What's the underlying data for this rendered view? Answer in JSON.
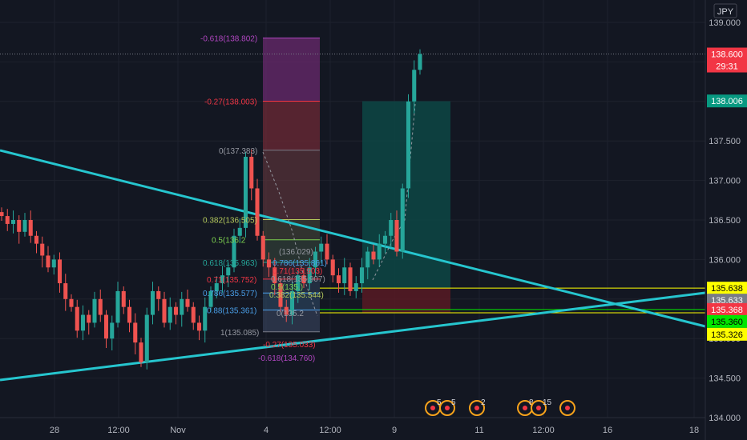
{
  "chart_data": {
    "type": "candlestick",
    "symbol_unit": "JPY",
    "y_axis": {
      "ticks": [
        "139.000",
        "138.500",
        "138.000",
        "137.500",
        "137.000",
        "136.500",
        "136.000",
        "135.500",
        "135.000",
        "134.500",
        "134.000"
      ],
      "range": [
        134.0,
        139.2
      ]
    },
    "x_axis": {
      "ticks": [
        {
          "label": "28"
        },
        {
          "label": "12:00"
        },
        {
          "label": "Nov"
        },
        {
          "label": "4"
        },
        {
          "label": "12:00"
        },
        {
          "label": "9"
        },
        {
          "label": "11"
        },
        {
          "label": "12:00"
        },
        {
          "label": "16"
        },
        {
          "label": "18"
        }
      ]
    },
    "price_tags": [
      {
        "label": "138.600",
        "value": 138.6,
        "color": "#f23645",
        "text_color": "#ffffff"
      },
      {
        "label": "29:31",
        "value": 138.43,
        "color": "#f23645",
        "text_color": "#ffffff"
      },
      {
        "label": "138.006",
        "value": 138.006,
        "color": "#089981",
        "text_color": "#ffffff"
      },
      {
        "label": "135.638",
        "value": 135.638,
        "color": "#ffff00",
        "text_color": "#000000"
      },
      {
        "label": "135.633",
        "value": 135.633,
        "color": "#787b86",
        "text_color": "#ffffff"
      },
      {
        "label": "135.368",
        "value": 135.368,
        "color": "#f23645",
        "text_color": "#ffffff"
      },
      {
        "label": "135.360",
        "value": 135.36,
        "color": "#00e600",
        "text_color": "#000000"
      },
      {
        "label": "135.326",
        "value": 135.326,
        "color": "#ffff00",
        "text_color": "#000000"
      }
    ],
    "fib_labels": [
      {
        "text": "-0.618(138.802)",
        "color": "#b046c0"
      },
      {
        "text": "-0.27(138.003)",
        "color": "#f23645"
      },
      {
        "text": "0(137.383)",
        "color": "#9598a1"
      },
      {
        "text": "0.382(136.505)",
        "color": "#b5c95c"
      },
      {
        "text": "0.5(136.2",
        "color": "#7ccf4f"
      },
      {
        "text": "0.618(135.963)",
        "color": "#26a69a"
      },
      {
        "text": "0.71(135.752)",
        "color": "#f23645"
      },
      {
        "text": "0.786(135.577)",
        "color": "#4a9fe8"
      },
      {
        "text": "0.88(135.361)",
        "color": "#4a9fe8"
      },
      {
        "text": "1(135.085)",
        "color": "#9598a1"
      },
      {
        "text": "-0.27(135.033)",
        "color": "#f23645"
      },
      {
        "text": "-0.618(134.760)",
        "color": "#b046c0"
      },
      {
        "text": "(136.029)",
        "color": "#9598a1"
      },
      {
        "text": "0.786(135.861)",
        "color": "#4a9fe8"
      },
      {
        "text": "0.71(135.903)",
        "color": "#f23645"
      },
      {
        "text": "0.618(135.907)",
        "color": "#9598a1"
      },
      {
        "text": "0.5(135.)",
        "color": "#7ccf4f"
      },
      {
        "text": "0.382(135.544)",
        "color": "#b5c95c"
      },
      {
        "text": "0(135.2",
        "color": "#9598a1"
      }
    ],
    "horizontal_levels": [
      135.638,
      135.368,
      135.326
    ],
    "trendlines": [
      {
        "name": "descending",
        "from": [
          -10,
          137.4
        ],
        "to": [
          100,
          135.2
        ]
      },
      {
        "name": "ascending",
        "from": [
          -10,
          134.5
        ],
        "to": [
          100,
          135.62
        ]
      }
    ],
    "event_badges": [
      "5",
      "5",
      "2",
      "8",
      "15"
    ],
    "candles_sample": {
      "note": "approximate OHLC path, oldest to newest",
      "closes": [
        136.55,
        136.45,
        136.5,
        136.35,
        136.5,
        136.3,
        136.2,
        136.05,
        135.9,
        136.0,
        135.7,
        135.5,
        135.4,
        135.1,
        135.3,
        135.2,
        135.5,
        135.3,
        135.0,
        135.2,
        135.6,
        135.4,
        135.2,
        134.95,
        134.7,
        135.3,
        135.6,
        135.5,
        135.2,
        135.4,
        135.3,
        135.5,
        135.4,
        135.2,
        135.1,
        135.4,
        135.6,
        135.7,
        135.8,
        135.9,
        136.3,
        136.4,
        137.3,
        136.9,
        136.3,
        136.0,
        135.9,
        135.7,
        135.4,
        135.3,
        135.6,
        135.8,
        135.7,
        135.9,
        136.1,
        136.2,
        136.0,
        135.8,
        135.7,
        135.9,
        135.6,
        135.7,
        135.9,
        136.1,
        136.0,
        136.2,
        136.3,
        136.5,
        136.1,
        136.9,
        138.0,
        138.4,
        138.6
      ]
    }
  }
}
